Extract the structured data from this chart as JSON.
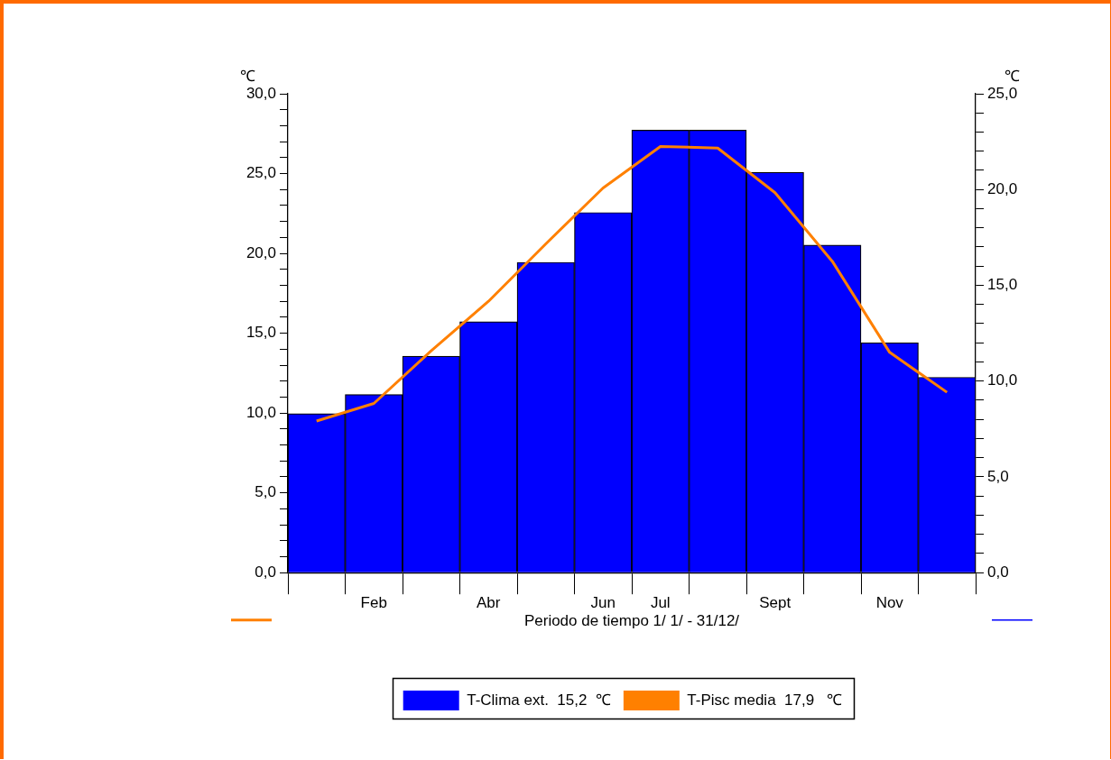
{
  "chart_data": {
    "type": "bar",
    "categories": [
      null,
      "Feb",
      null,
      "Abr",
      null,
      "Jun",
      "Jul",
      null,
      "Sept",
      null,
      "Nov",
      null
    ],
    "series": [
      {
        "name": "T-Clima ext.  15,2  ℃",
        "axis": "y2",
        "color": "#0000ff",
        "values": [
          8.3,
          9.3,
          11.3,
          13.1,
          16.2,
          18.8,
          23.1,
          23.1,
          20.9,
          17.1,
          12.0,
          10.2
        ]
      },
      {
        "name": "T-Pisc media  17,9   ℃",
        "type": "line",
        "color": "#ff8000",
        "values": [
          9.5,
          10.6,
          13.9,
          17.0,
          20.6,
          24.1,
          26.7,
          26.6,
          23.8,
          19.5,
          13.8,
          11.3
        ]
      }
    ],
    "xlabel": "Periodo de tiempo 1/ 1/ - 31/12/",
    "ylabel": "℃",
    "y2label": "℃",
    "ylim": [
      0,
      30
    ],
    "yticks": [
      {
        "value": 0,
        "label": "0,0"
      },
      {
        "value": 1,
        "label": null
      },
      {
        "value": 2,
        "label": null
      },
      {
        "value": 3,
        "label": null
      },
      {
        "value": 4,
        "label": null
      },
      {
        "value": 5,
        "label": "5,0"
      },
      {
        "value": 6,
        "label": null
      },
      {
        "value": 7,
        "label": null
      },
      {
        "value": 8,
        "label": null
      },
      {
        "value": 9,
        "label": null
      },
      {
        "value": 10,
        "label": "10,0"
      },
      {
        "value": 11,
        "label": null
      },
      {
        "value": 12,
        "label": null
      },
      {
        "value": 13,
        "label": null
      },
      {
        "value": 14,
        "label": null
      },
      {
        "value": 15,
        "label": "15,0"
      },
      {
        "value": 16,
        "label": null
      },
      {
        "value": 17,
        "label": null
      },
      {
        "value": 18,
        "label": null
      },
      {
        "value": 19,
        "label": null
      },
      {
        "value": 20,
        "label": "20,0"
      },
      {
        "value": 21,
        "label": null
      },
      {
        "value": 22,
        "label": null
      },
      {
        "value": 23,
        "label": null
      },
      {
        "value": 24,
        "label": null
      },
      {
        "value": 25,
        "label": "25,0"
      },
      {
        "value": 26,
        "label": null
      },
      {
        "value": 27,
        "label": null
      },
      {
        "value": 28,
        "label": null
      },
      {
        "value": 29,
        "label": null
      },
      {
        "value": 30,
        "label": "30,0"
      }
    ],
    "y2lim": [
      0,
      25
    ],
    "y2ticks": [
      {
        "value": 0,
        "label": "0,0"
      },
      {
        "value": 1,
        "label": null
      },
      {
        "value": 2,
        "label": null
      },
      {
        "value": 3,
        "label": null
      },
      {
        "value": 4,
        "label": null
      },
      {
        "value": 5,
        "label": "5,0"
      },
      {
        "value": 6,
        "label": null
      },
      {
        "value": 7,
        "label": null
      },
      {
        "value": 8,
        "label": null
      },
      {
        "value": 9,
        "label": null
      },
      {
        "value": 10,
        "label": "10,0"
      },
      {
        "value": 11,
        "label": null
      },
      {
        "value": 12,
        "label": null
      },
      {
        "value": 13,
        "label": null
      },
      {
        "value": 14,
        "label": null
      },
      {
        "value": 15,
        "label": "15,0"
      },
      {
        "value": 16,
        "label": null
      },
      {
        "value": 17,
        "label": null
      },
      {
        "value": 18,
        "label": null
      },
      {
        "value": 19,
        "label": null
      },
      {
        "value": 20,
        "label": "20,0"
      },
      {
        "value": 21,
        "label": null
      },
      {
        "value": 22,
        "label": null
      },
      {
        "value": 23,
        "label": null
      },
      {
        "value": 24,
        "label": null
      },
      {
        "value": 25,
        "label": "25,0"
      }
    ],
    "grid": false,
    "legend": "bottom",
    "marker": "none"
  }
}
